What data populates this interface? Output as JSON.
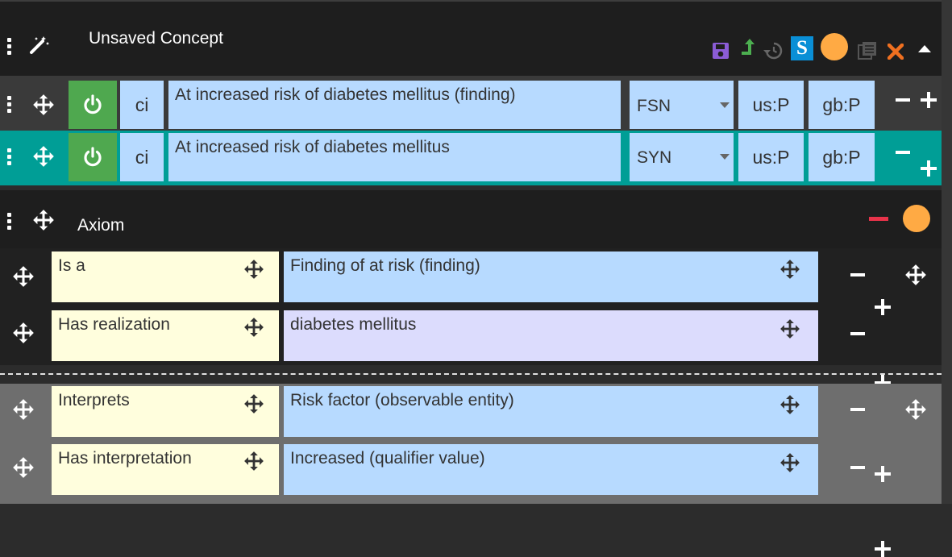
{
  "concept": {
    "title": "Unsaved Concept",
    "toolbar": {
      "save_icon_color": "#8b5cd6",
      "promote_icon_color": "#4caf50",
      "s_badge_label": "S",
      "s_badge_color": "#0a8fd6",
      "close_icon_color": "#f07020",
      "status_dot_color": "#ffaa44"
    }
  },
  "descriptions": [
    {
      "case": "ci",
      "term": "At increased risk of diabetes mellitus (finding)",
      "type": "FSN",
      "us": "us:P",
      "gb": "gb:P"
    },
    {
      "case": "ci",
      "term": "At increased risk of diabetes mellitus",
      "type": "SYN",
      "us": "us:P",
      "gb": "gb:P"
    }
  ],
  "axiom": {
    "title": "Axiom",
    "minus_color": "#e8334a",
    "status_dot_color": "#ffaa44",
    "relationships": [
      {
        "type": "Is a",
        "target": "Finding of at risk (finding)"
      },
      {
        "type": "Has realization",
        "target": "diabetes mellitus"
      }
    ],
    "group_relationships": [
      {
        "type": "Interprets",
        "target": "Risk factor (observable entity)"
      },
      {
        "type": "Has interpretation",
        "target": "Increased (qualifier value)"
      }
    ]
  }
}
